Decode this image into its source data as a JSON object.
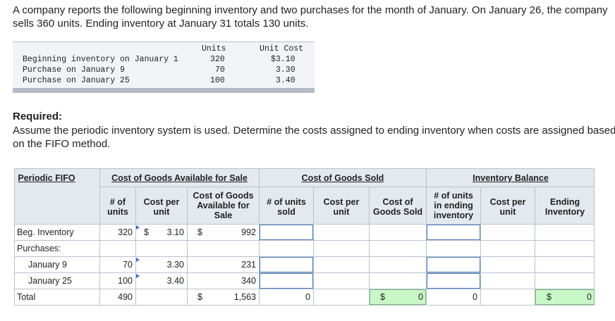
{
  "problem": {
    "intro": "A company reports the following beginning inventory and two purchases for the month of January. On January 26, the company sells 360 units. Ending inventory at January 31 totals 130 units.",
    "table_headers": {
      "units": "Units",
      "unit_cost": "Unit Cost"
    },
    "rows": [
      {
        "label": "Beginning inventory on January 1",
        "units": "320",
        "unit_cost": "$3.10"
      },
      {
        "label": "Purchase on January 9",
        "units": "70",
        "unit_cost": "3.30"
      },
      {
        "label": "Purchase on January 25",
        "units": "100",
        "unit_cost": "3.40"
      }
    ],
    "required_title": "Required:",
    "required_text": "Assume the periodic inventory system is used. Determine the costs assigned to ending inventory when costs are assigned based on the FIFO method."
  },
  "worksheet": {
    "title": "Periodic FIFO",
    "groups": {
      "cogas": "Cost of Goods Available for Sale",
      "cogs": "Cost of Goods Sold",
      "inv": "Inventory Balance"
    },
    "columns": {
      "units": "# of units",
      "cost_per_unit": "Cost per unit",
      "cogas": "Cost of Goods Available for Sale",
      "units_sold": "# of units sold",
      "cogs_cpu": "Cost per unit",
      "cogs_total": "Cost of Goods Sold",
      "inv_units": "# of units in ending inventory",
      "inv_cpu": "Cost per unit",
      "inv_total": "Ending Inventory"
    },
    "col_units_1": "# of",
    "col_units_2": "units",
    "col_cpu_1": "Cost per",
    "col_cpu_2": "unit",
    "col_cogas_1": "Cost of Goods",
    "col_cogas_2": "Available for",
    "col_cogas_3": "Sale",
    "col_sold_1": "# of units",
    "col_sold_2": "sold",
    "col_cogs_cpu_1": "Cost per",
    "col_cogs_cpu_2": "unit",
    "col_cogs_1": "Cost of",
    "col_cogs_2": "Goods Sold",
    "col_inv_units_1": "# of units",
    "col_inv_units_2": "in ending",
    "col_inv_units_3": "inventory",
    "col_inv_cpu_1": "Cost per",
    "col_inv_cpu_2": "unit",
    "col_inv_total_1": "Ending",
    "col_inv_total_2": "Inventory",
    "rows": {
      "beg": {
        "label": "Beg. Inventory",
        "units": "320",
        "dollar": "$",
        "cpu": "3.10",
        "dollar2": "$",
        "cogas": "992"
      },
      "purchases": {
        "label": "Purchases:"
      },
      "jan9": {
        "label": "January 9",
        "units": "70",
        "cpu": "3.30",
        "cogas": "231"
      },
      "jan25": {
        "label": "January 25",
        "units": "100",
        "cpu": "3.40",
        "cogas": "340"
      },
      "total": {
        "label": "Total",
        "units": "490",
        "dollar": "$",
        "cogas": "1,563",
        "units_sold": "0",
        "cogs_dollar": "$",
        "cogs": "0",
        "inv_units": "0",
        "inv_dollar": "$",
        "inv_total": "0"
      }
    }
  }
}
